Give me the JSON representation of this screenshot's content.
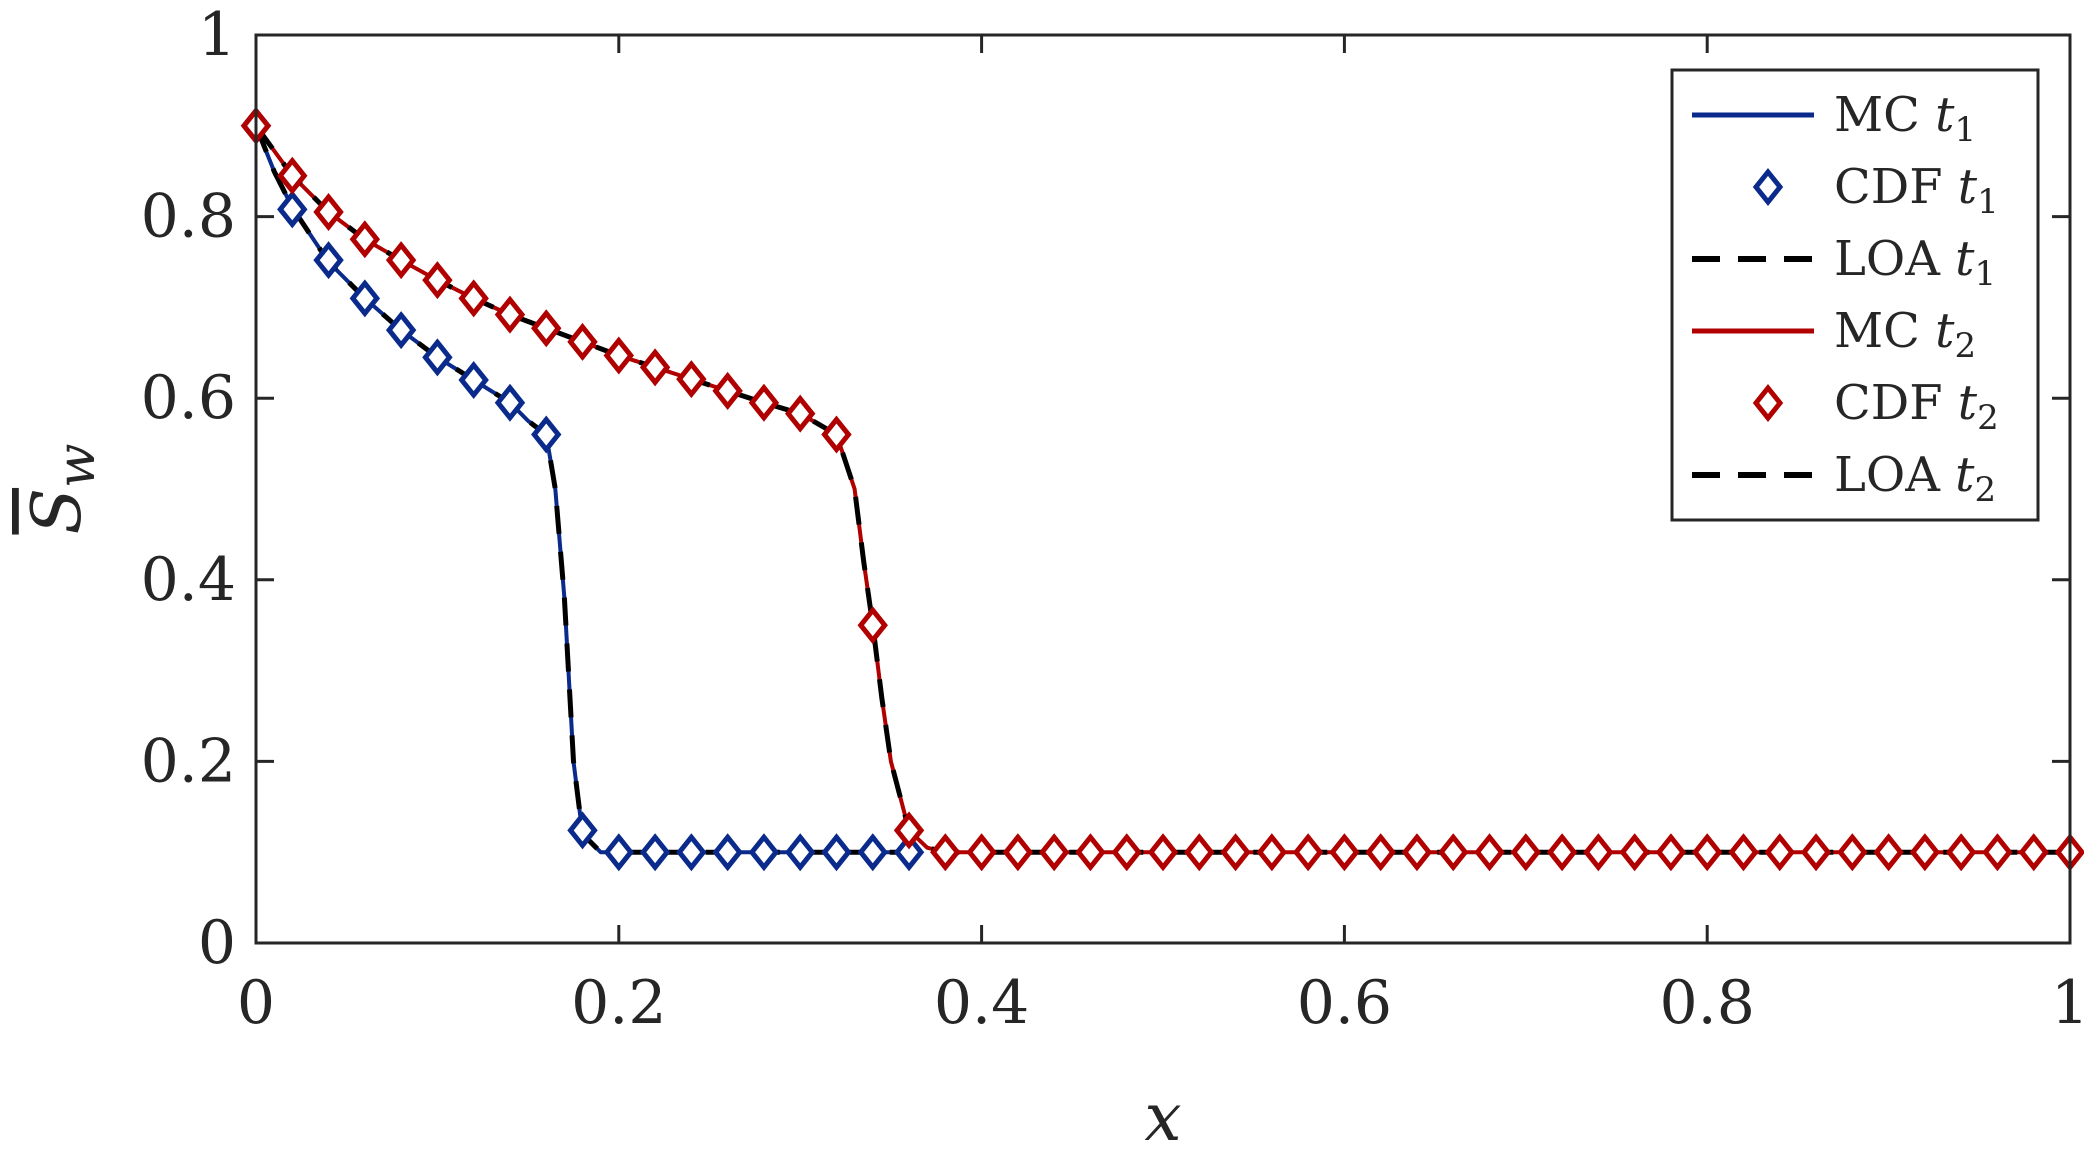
{
  "chart_data": {
    "type": "line",
    "title": "",
    "xlabel": "x",
    "ylabel": "S̄w",
    "ylabel_main": "S",
    "ylabel_sub": "w",
    "xlim": [
      0,
      1
    ],
    "ylim": [
      0,
      1
    ],
    "x_ticks": [
      0,
      0.2,
      0.4,
      0.6,
      0.8,
      1
    ],
    "x_tick_labels": [
      "0",
      "0.2",
      "0.4",
      "0.6",
      "0.8",
      "1"
    ],
    "y_ticks": [
      0,
      0.2,
      0.4,
      0.6,
      0.8,
      1
    ],
    "y_tick_labels": [
      "0",
      "0.2",
      "0.4",
      "0.6",
      "0.8",
      "1"
    ],
    "grid": false,
    "legend_position": "top-right",
    "colors": {
      "blue": "#0a2a8c",
      "red": "#b00000",
      "black": "#000000",
      "axis": "#262626"
    },
    "series": [
      {
        "name": "MC t1",
        "label_main": "MC ",
        "label_var": "t",
        "label_sub": "1",
        "style": "solid",
        "color": "#0a2a8c",
        "x": [
          0,
          0.01,
          0.02,
          0.03,
          0.04,
          0.06,
          0.08,
          0.1,
          0.12,
          0.14,
          0.15,
          0.16,
          0.165,
          0.17,
          0.175,
          0.18,
          0.19,
          0.2,
          0.36
        ],
        "y": [
          0.9,
          0.85,
          0.81,
          0.78,
          0.75,
          0.71,
          0.675,
          0.645,
          0.62,
          0.595,
          0.575,
          0.56,
          0.5,
          0.38,
          0.2,
          0.12,
          0.1,
          0.1,
          0.1
        ]
      },
      {
        "name": "CDF t1",
        "label_main": "CDF ",
        "label_var": "t",
        "label_sub": "1",
        "style": "marker",
        "color": "#0a2a8c",
        "x": [
          0,
          0.02,
          0.04,
          0.06,
          0.08,
          0.1,
          0.12,
          0.14,
          0.16,
          0.18,
          0.2,
          0.22,
          0.24,
          0.26,
          0.28,
          0.3,
          0.32,
          0.34,
          0.36
        ],
        "y": [
          0.9,
          0.808,
          0.752,
          0.71,
          0.675,
          0.645,
          0.62,
          0.595,
          0.56,
          0.124,
          0.1,
          0.1,
          0.1,
          0.1,
          0.1,
          0.1,
          0.1,
          0.1,
          0.1
        ]
      },
      {
        "name": "LOA t1",
        "label_main": "LOA ",
        "label_var": "t",
        "label_sub": "1",
        "style": "dashed",
        "color": "#000000",
        "x": [
          0,
          0.01,
          0.02,
          0.03,
          0.04,
          0.06,
          0.08,
          0.1,
          0.12,
          0.14,
          0.15,
          0.16,
          0.165,
          0.17,
          0.175,
          0.18,
          0.19,
          0.2,
          0.36
        ],
        "y": [
          0.9,
          0.85,
          0.81,
          0.78,
          0.75,
          0.71,
          0.675,
          0.645,
          0.62,
          0.595,
          0.575,
          0.56,
          0.5,
          0.38,
          0.2,
          0.12,
          0.1,
          0.1,
          0.1
        ]
      },
      {
        "name": "MC t2",
        "label_main": "MC ",
        "label_var": "t",
        "label_sub": "2",
        "style": "solid",
        "color": "#b00000",
        "x": [
          0,
          0.02,
          0.04,
          0.06,
          0.08,
          0.1,
          0.12,
          0.14,
          0.16,
          0.18,
          0.2,
          0.22,
          0.24,
          0.26,
          0.28,
          0.3,
          0.32,
          0.33,
          0.335,
          0.34,
          0.345,
          0.35,
          0.36,
          0.37,
          0.38,
          1
        ],
        "y": [
          0.9,
          0.845,
          0.805,
          0.775,
          0.752,
          0.73,
          0.71,
          0.692,
          0.677,
          0.662,
          0.647,
          0.634,
          0.621,
          0.608,
          0.595,
          0.583,
          0.56,
          0.5,
          0.42,
          0.35,
          0.27,
          0.2,
          0.124,
          0.105,
          0.1,
          0.1
        ]
      },
      {
        "name": "CDF t2",
        "label_main": "CDF ",
        "label_var": "t",
        "label_sub": "2",
        "style": "marker",
        "color": "#b00000",
        "x": [
          0,
          0.02,
          0.04,
          0.06,
          0.08,
          0.1,
          0.12,
          0.14,
          0.16,
          0.18,
          0.2,
          0.22,
          0.24,
          0.26,
          0.28,
          0.3,
          0.32,
          0.34,
          0.36,
          0.38,
          0.4,
          0.42,
          0.44,
          0.46,
          0.48,
          0.5,
          0.52,
          0.54,
          0.56,
          0.58,
          0.6,
          0.62,
          0.64,
          0.66,
          0.68,
          0.7,
          0.72,
          0.74,
          0.76,
          0.78,
          0.8,
          0.82,
          0.84,
          0.86,
          0.88,
          0.9,
          0.92,
          0.94,
          0.96,
          0.98,
          1
        ],
        "y": [
          0.9,
          0.845,
          0.805,
          0.775,
          0.752,
          0.73,
          0.71,
          0.692,
          0.677,
          0.662,
          0.647,
          0.634,
          0.621,
          0.608,
          0.595,
          0.583,
          0.56,
          0.35,
          0.124,
          0.1,
          0.1,
          0.1,
          0.1,
          0.1,
          0.1,
          0.1,
          0.1,
          0.1,
          0.1,
          0.1,
          0.1,
          0.1,
          0.1,
          0.1,
          0.1,
          0.1,
          0.1,
          0.1,
          0.1,
          0.1,
          0.1,
          0.1,
          0.1,
          0.1,
          0.1,
          0.1,
          0.1,
          0.1,
          0.1,
          0.1,
          0.1
        ]
      },
      {
        "name": "LOA t2",
        "label_main": "LOA ",
        "label_var": "t",
        "label_sub": "2",
        "style": "dashed",
        "color": "#000000",
        "x": [
          0,
          0.02,
          0.04,
          0.06,
          0.08,
          0.1,
          0.12,
          0.14,
          0.16,
          0.18,
          0.2,
          0.22,
          0.24,
          0.26,
          0.28,
          0.3,
          0.32,
          0.33,
          0.335,
          0.34,
          0.345,
          0.35,
          0.36,
          0.37,
          0.38,
          1
        ],
        "y": [
          0.9,
          0.845,
          0.805,
          0.775,
          0.752,
          0.73,
          0.71,
          0.692,
          0.677,
          0.662,
          0.647,
          0.634,
          0.621,
          0.608,
          0.595,
          0.583,
          0.56,
          0.5,
          0.42,
          0.35,
          0.27,
          0.2,
          0.124,
          0.105,
          0.1,
          0.1
        ]
      }
    ]
  }
}
